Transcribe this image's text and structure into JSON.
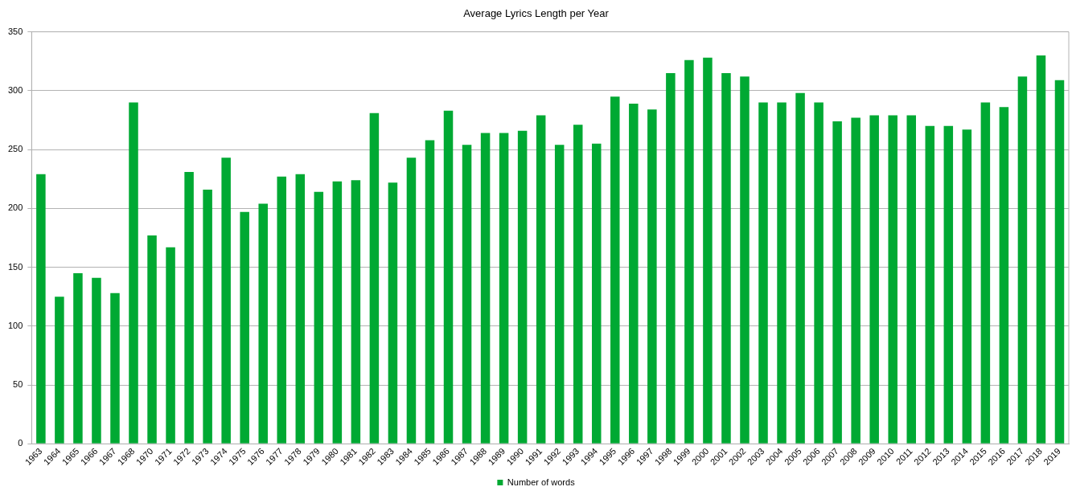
{
  "chart_data": {
    "type": "bar",
    "title": "Average Lyrics Length per Year",
    "categories": [
      "1963",
      "1964",
      "1965",
      "1966",
      "1967",
      "1968",
      "1970",
      "1971",
      "1972",
      "1973",
      "1974",
      "1975",
      "1976",
      "1977",
      "1978",
      "1979",
      "1980",
      "1981",
      "1982",
      "1983",
      "1984",
      "1985",
      "1986",
      "1987",
      "1988",
      "1989",
      "1990",
      "1991",
      "1992",
      "1993",
      "1994",
      "1995",
      "1996",
      "1997",
      "1998",
      "1999",
      "2000",
      "2001",
      "2002",
      "2003",
      "2004",
      "2005",
      "2006",
      "2007",
      "2008",
      "2009",
      "2010",
      "2011",
      "2012",
      "2013",
      "2014",
      "2015",
      "2016",
      "2017",
      "2018",
      "2019"
    ],
    "series": [
      {
        "name": "Number of words",
        "color": "#00a933",
        "values": [
          229,
          125,
          145,
          141,
          128,
          290,
          177,
          167,
          231,
          216,
          243,
          197,
          204,
          227,
          229,
          214,
          223,
          224,
          281,
          222,
          243,
          258,
          283,
          254,
          264,
          264,
          266,
          279,
          254,
          271,
          255,
          295,
          289,
          284,
          315,
          326,
          328,
          315,
          312,
          290,
          290,
          298,
          290,
          274,
          277,
          279,
          279,
          279,
          270,
          270,
          267,
          290,
          286,
          312,
          330,
          309
        ]
      }
    ],
    "ylim": [
      0,
      350
    ],
    "yticks": [
      0,
      50,
      100,
      150,
      200,
      250,
      300,
      350
    ],
    "grid": "y",
    "legend": "bottom"
  }
}
